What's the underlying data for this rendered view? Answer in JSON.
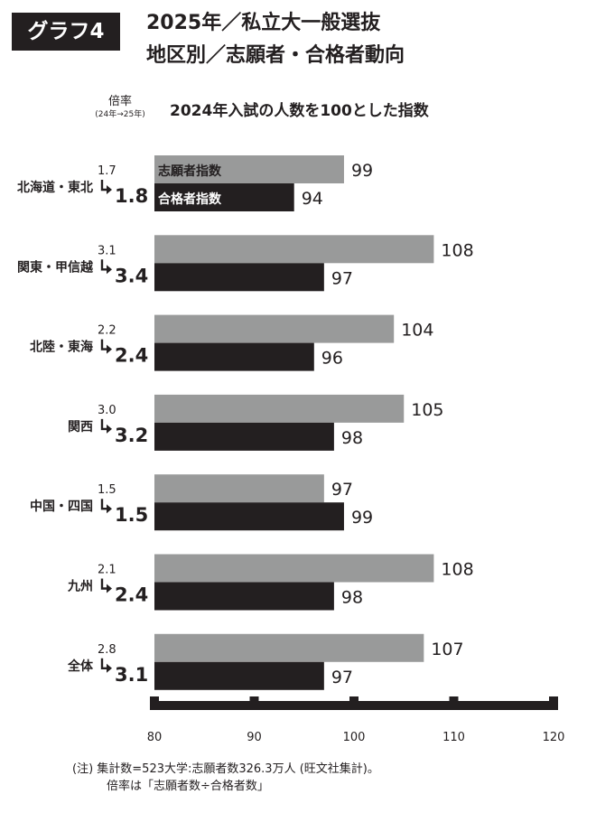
{
  "badge": "グラフ4",
  "title_line1": "2025年／私立大一般選抜",
  "title_line2": "地区別／志願者・合格者動向",
  "ratio_header": "倍率",
  "ratio_header_sub": "(24年→25年)",
  "subtitle": "2024年入試の人数を100とした指数",
  "footnote_1": "(注) 集計数=523大学:志願者数326.3万人 (旺文社集計)。",
  "footnote_2": "倍率は「志願者数÷合格者数」",
  "colors": {
    "applicants": "#999a9a",
    "passers": "#231f20"
  },
  "chart_data": {
    "type": "bar",
    "orientation": "horizontal",
    "categories": [
      "北海道・東北",
      "関東・甲信越",
      "北陸・東海",
      "関西",
      "中国・四国",
      "九州",
      "全体"
    ],
    "series": [
      {
        "name": "志願者指数",
        "values": [
          99,
          108,
          104,
          105,
          97,
          108,
          107
        ]
      },
      {
        "name": "合格者指数",
        "values": [
          94,
          97,
          96,
          98,
          99,
          98,
          97
        ]
      }
    ],
    "ratio_2024": [
      "1.7",
      "3.1",
      "2.2",
      "3.0",
      "1.5",
      "2.1",
      "2.8"
    ],
    "ratio_2025": [
      "1.8",
      "3.4",
      "2.4",
      "3.2",
      "1.5",
      "2.4",
      "3.1"
    ],
    "xlim": [
      80,
      120
    ],
    "xticks": [
      80,
      90,
      100,
      110,
      120
    ]
  }
}
